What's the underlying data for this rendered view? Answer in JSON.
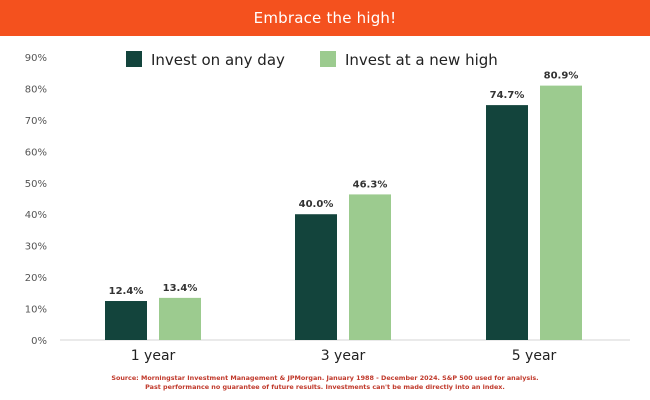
{
  "header": {
    "title": "Embrace the high!"
  },
  "colors": {
    "header_bg": "#f4511e",
    "series_any_day": "#13443c",
    "series_new_high": "#9ccb8f",
    "source_text": "#c0392b"
  },
  "chart_data": {
    "type": "bar",
    "title": "",
    "xlabel": "",
    "ylabel": "",
    "categories": [
      "1 year",
      "3 year",
      "5 year"
    ],
    "series": [
      {
        "name": "Invest on any day",
        "values": [
          12.4,
          40.0,
          74.7
        ],
        "labels": [
          "12.4%",
          "40.0%",
          "74.7%"
        ]
      },
      {
        "name": "Invest at a new high",
        "values": [
          13.4,
          46.3,
          80.9
        ],
        "labels": [
          "13.4%",
          "46.3%",
          "80.9%"
        ]
      }
    ],
    "ylim": [
      0,
      90
    ],
    "yticks": [
      "0%",
      "10%",
      "20%",
      "30%",
      "40%",
      "50%",
      "60%",
      "70%",
      "80%",
      "90%"
    ],
    "grid": false,
    "legend_position": "top"
  },
  "footer": {
    "source_line1": "Source: Morningstar Investment Management & JPMorgan. January 1988 - December 2024. S&P 500 used for analysis.",
    "source_line2": "Past performance no guarantee of future results. Investments can't be made directly into an index."
  }
}
